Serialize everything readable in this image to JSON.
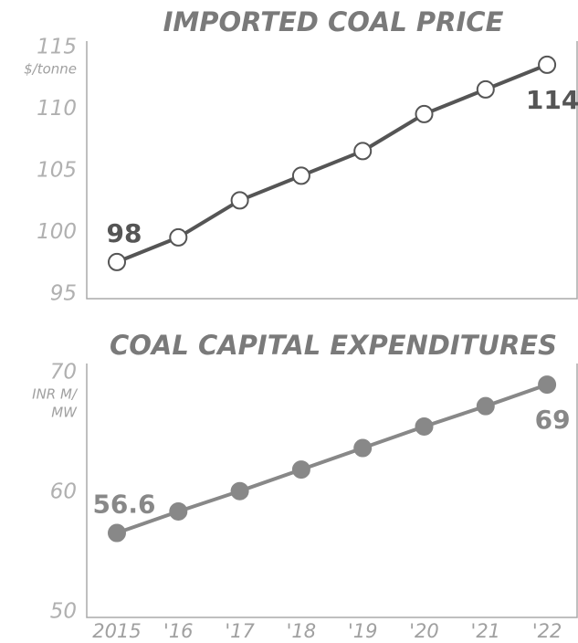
{
  "chart_data": [
    {
      "type": "line",
      "title": "IMPORTED COAL PRICE",
      "y_unit": [
        "$/tonne"
      ],
      "values": [
        97.6,
        99.6,
        102.6,
        104.6,
        106.6,
        109.6,
        111.6,
        113.6
      ],
      "value_labels": [
        "98",
        null,
        null,
        null,
        null,
        null,
        null,
        "114"
      ],
      "color": "#555555",
      "marker_fill": "#ffffff",
      "ylim": [
        95,
        115
      ],
      "yticks": [
        95,
        100,
        105,
        110,
        115
      ]
    },
    {
      "type": "line",
      "title": "COAL CAPITAL EXPENDITURES",
      "y_unit": [
        "INR M/",
        "MW"
      ],
      "categories": [
        "2015",
        "'16",
        "'17",
        "'18",
        "'19",
        "'20",
        "'21",
        "'22"
      ],
      "values": [
        56.6,
        58.4,
        60.1,
        61.9,
        63.7,
        65.5,
        67.2,
        69
      ],
      "value_labels": [
        "56.6",
        null,
        null,
        null,
        null,
        null,
        null,
        "69"
      ],
      "color": "#888888",
      "marker_fill": "#888888",
      "ylim": [
        50,
        70
      ],
      "yticks": [
        50,
        60,
        70
      ]
    }
  ]
}
